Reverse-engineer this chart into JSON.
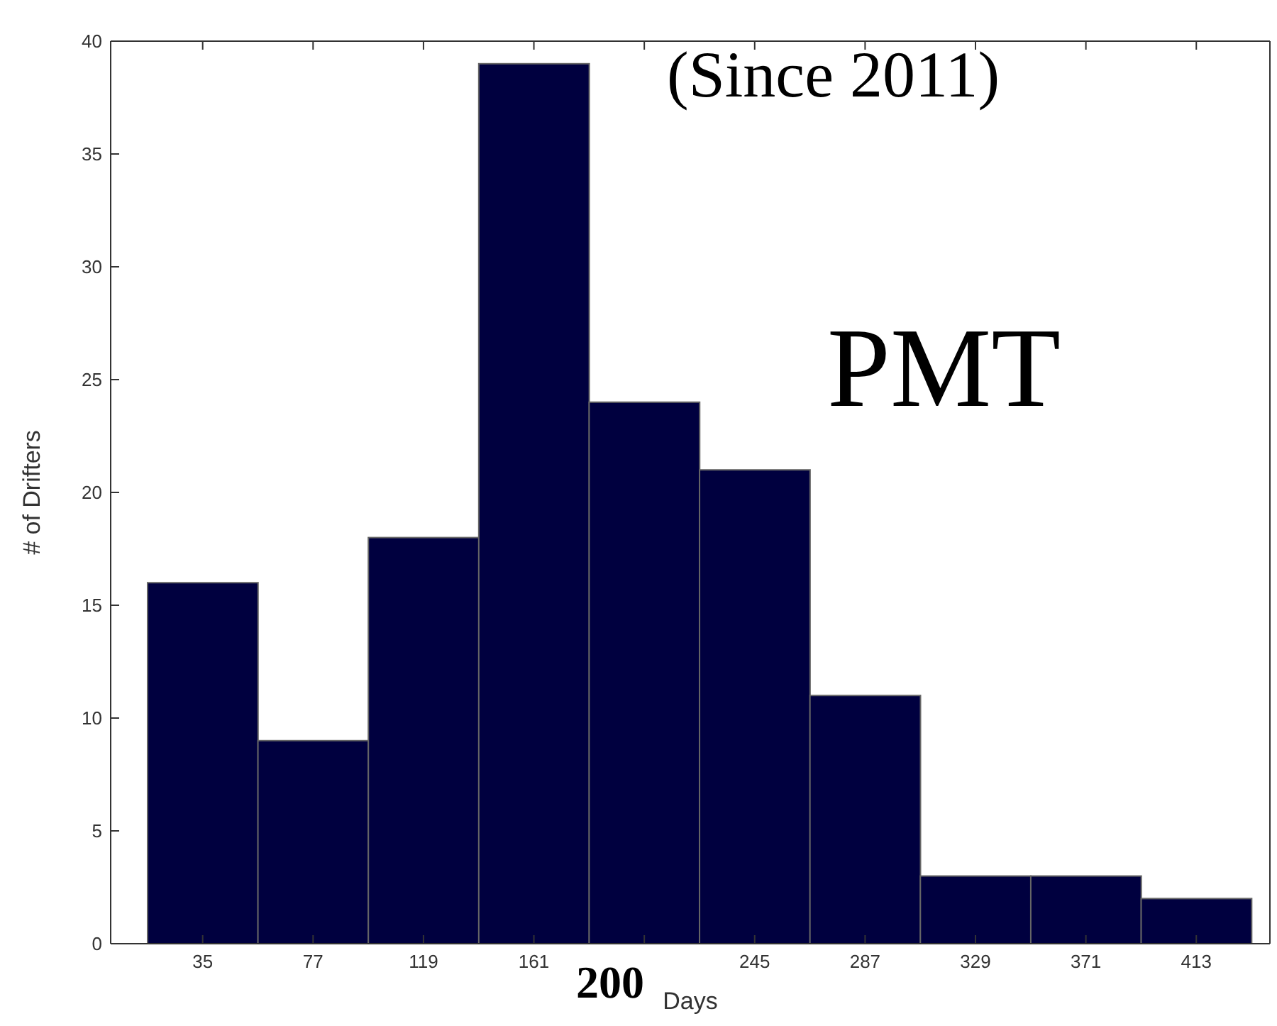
{
  "chart_data": {
    "type": "histogram",
    "xlabel": "Days",
    "ylabel": "# of Drifters",
    "bins": [
      14,
      56,
      98,
      140,
      182,
      224,
      266,
      308,
      350,
      392,
      434
    ],
    "values": [
      16,
      9,
      18,
      39,
      24,
      21,
      11,
      3,
      3,
      2
    ],
    "color": "#00003f",
    "xlim": [
      0,
      441
    ],
    "xticks": [
      35,
      77,
      119,
      161,
      {
        "value": 203,
        "label": null
      },
      245,
      287,
      329,
      371,
      413
    ],
    "ylim": [
      0,
      40
    ],
    "yticks": [
      0,
      5,
      10,
      15,
      20,
      25,
      30,
      35,
      40
    ],
    "annotations": [
      "(Since 2011)",
      "PMT",
      "200"
    ]
  }
}
